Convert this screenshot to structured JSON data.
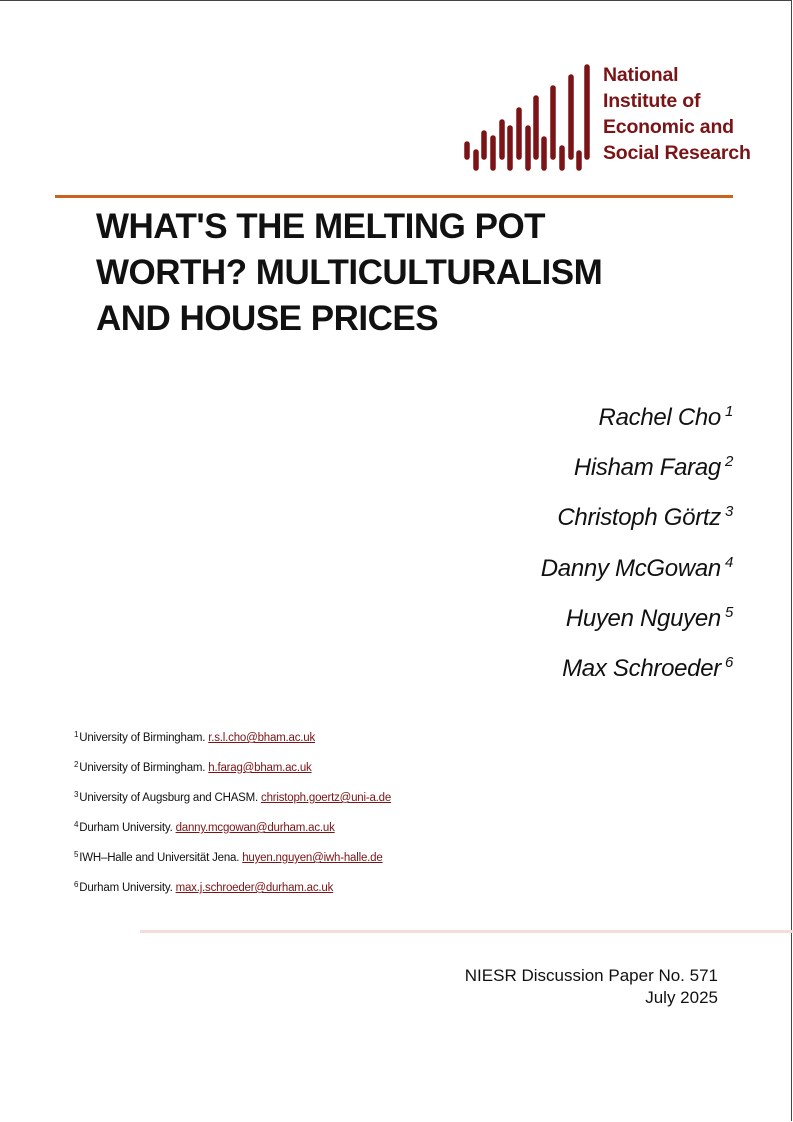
{
  "logo": {
    "lines": [
      "National",
      "Institute of",
      "Economic and",
      "Social Research"
    ],
    "color": "#7b1416"
  },
  "title_lines": [
    "WHAT'S THE MELTING POT",
    "WORTH? MULTICULTURALISM",
    "AND HOUSE PRICES"
  ],
  "authors": [
    {
      "name": "Rachel Cho",
      "mark": "1"
    },
    {
      "name": "Hisham Farag",
      "mark": "2"
    },
    {
      "name": "Christoph Görtz",
      "mark": "3"
    },
    {
      "name": "Danny McGowan",
      "mark": "4"
    },
    {
      "name": "Huyen Nguyen",
      "mark": "5"
    },
    {
      "name": "Max Schroeder",
      "mark": "6"
    }
  ],
  "footnotes": [
    {
      "mark": "1",
      "text": "University of Birmingham. ",
      "email": "r.s.l.cho@bham.ac.uk"
    },
    {
      "mark": "2",
      "text": "University of Birmingham. ",
      "email": "h.farag@bham.ac.uk"
    },
    {
      "mark": "3",
      "text": "University of Augsburg and CHASM. ",
      "email": "christoph.goertz@uni-a.de"
    },
    {
      "mark": "4",
      "text": "Durham University. ",
      "email": "danny.mcgowan@durham.ac.uk"
    },
    {
      "mark": "5",
      "text": "IWH–Halle and Universität Jena. ",
      "email": "huyen.nguyen@iwh-halle.de"
    },
    {
      "mark": "6",
      "text": "Durham University. ",
      "email": "max.j.schroeder@durham.ac.uk"
    }
  ],
  "paper": {
    "series": "NIESR Discussion Paper No. 571",
    "date": "July 2025"
  },
  "colors": {
    "accent_rule": "#c8641e",
    "brand": "#7b1416",
    "bottom_rule": "#f3dcdc"
  }
}
